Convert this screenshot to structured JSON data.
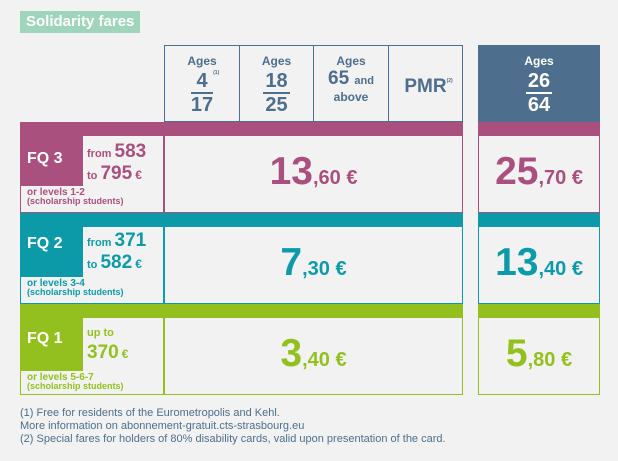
{
  "title": "Solidarity fares",
  "headers": {
    "ages_word": "Ages",
    "col1": {
      "num": "4",
      "den": "17",
      "note": "(1)"
    },
    "col2": {
      "num": "18",
      "den": "25"
    },
    "col3": {
      "age": "65",
      "and": "and",
      "above": "above"
    },
    "col4": {
      "label": "PMR",
      "note": "(2)"
    },
    "col5": {
      "num": "26",
      "den": "64"
    }
  },
  "rows": [
    {
      "code": "FQ",
      "num": "3",
      "from": "from",
      "low": "583",
      "to": "to",
      "high": "795",
      "currency": "€",
      "levels": "or levels 1-2",
      "scholar": "(scholarship students)",
      "price_main": "13",
      "price_cents": ",60 €",
      "price_adult": "25",
      "price_adult_cents": ",70 €",
      "color": "#a9507e"
    },
    {
      "code": "FQ",
      "num": "2",
      "from": "from",
      "low": "371",
      "to": "to",
      "high": "582",
      "currency": "€",
      "levels": "or levels 3-4",
      "scholar": "(scholarship students)",
      "price_main": "7",
      "price_cents": ",30 €",
      "price_adult": "13",
      "price_adult_cents": ",40 €",
      "color": "#0d9aa8"
    },
    {
      "code": "FQ",
      "num": "1",
      "upto": "up to",
      "high": "370",
      "currency": "€",
      "levels": "or levels  5-6-7",
      "scholar": "(scholarship students)",
      "price_main": "3",
      "price_cents": ",40 €",
      "price_adult": "5",
      "price_adult_cents": ",80 €",
      "color": "#93c01f"
    }
  ],
  "notes": [
    "(1) Free for residents of the Eurometropolis and Kehl.",
    "More information on abonnement-gratuit.cts-strasbourg.eu",
    "(2) Special fares for holders of 80% disability cards, valid upon presentation of the card."
  ]
}
